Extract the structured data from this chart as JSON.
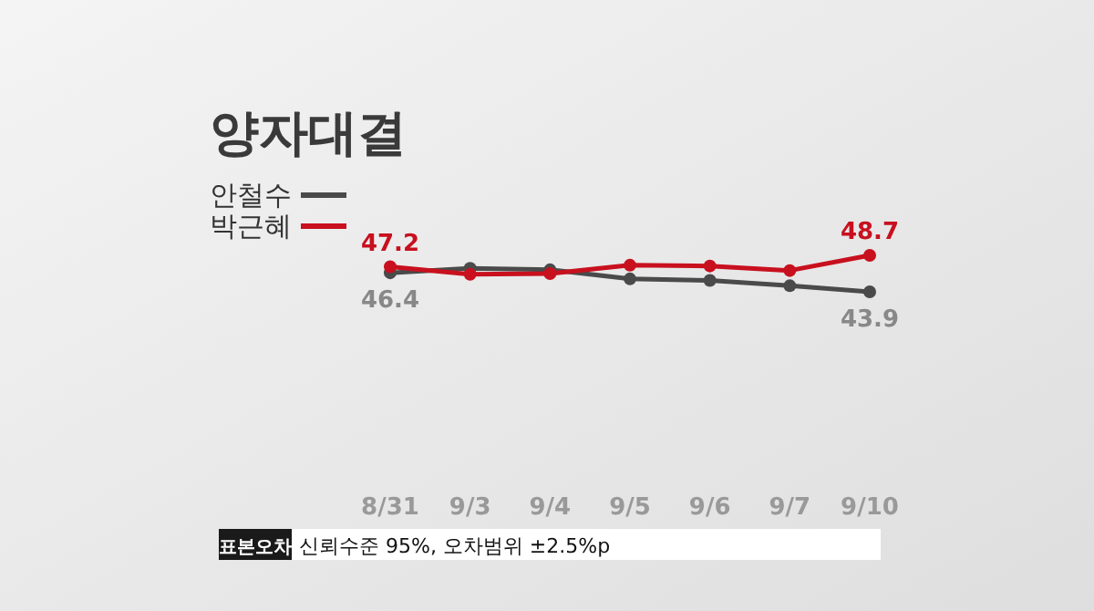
{
  "chart_data": {
    "type": "line",
    "title": "양자대결",
    "categories": [
      "8/31",
      "9/3",
      "9/4",
      "9/5",
      "9/6",
      "9/7",
      "9/10"
    ],
    "series": [
      {
        "name": "안철수",
        "color": "#4a4a4a",
        "values": [
          46.4,
          47.0,
          46.8,
          45.6,
          45.4,
          44.7,
          43.9
        ],
        "value_labels": [
          "46.4",
          null,
          null,
          null,
          null,
          null,
          "43.9"
        ]
      },
      {
        "name": "박근혜",
        "color": "#c8101e",
        "values": [
          47.2,
          46.2,
          46.3,
          47.4,
          47.3,
          46.7,
          48.7
        ],
        "value_labels": [
          "47.2",
          null,
          null,
          null,
          null,
          null,
          "48.7"
        ]
      }
    ],
    "legend": "top left",
    "marker": "circle",
    "line_style": "solid",
    "grid": false,
    "annotations": [
      "표본오차",
      "신뢰수준 95%, 오차범위 ±2.5%p"
    ]
  }
}
